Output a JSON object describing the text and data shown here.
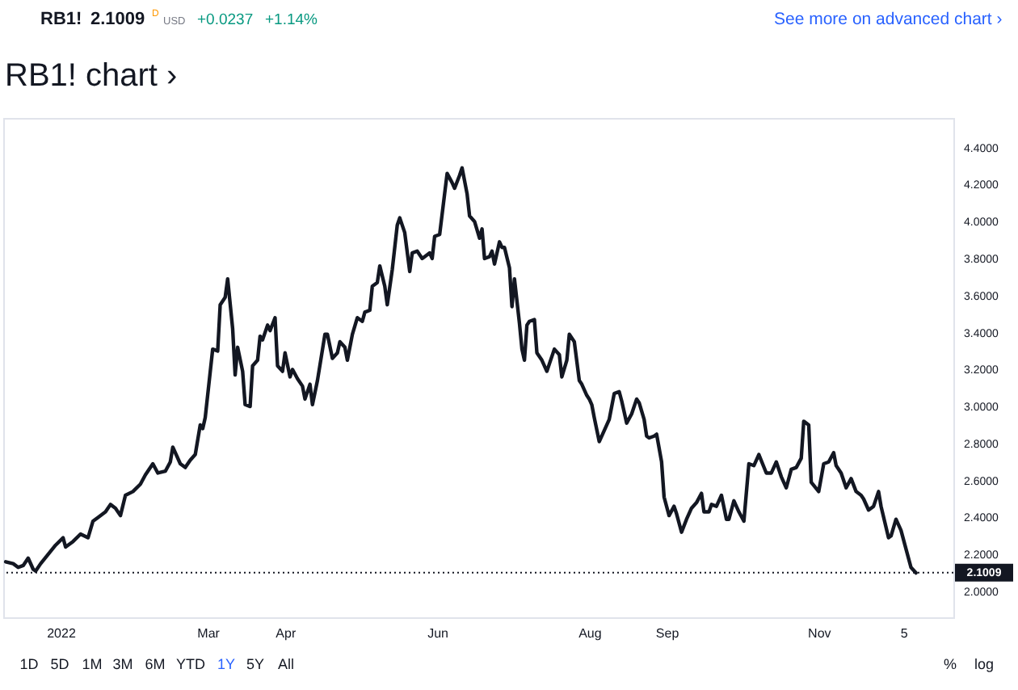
{
  "chart_data": {
    "type": "line",
    "title": "RB1! chart ›",
    "x": [
      "2021-12-10",
      "2021-12-13",
      "2021-12-15",
      "2021-12-17",
      "2021-12-19",
      "2021-12-21",
      "2021-12-22",
      "2021-12-24",
      "2021-12-27",
      "2021-12-30",
      "2022-01-02",
      "2022-01-03",
      "2022-01-06",
      "2022-01-09",
      "2022-01-12",
      "2022-01-14",
      "2022-01-16",
      "2022-01-19",
      "2022-01-21",
      "2022-01-23",
      "2022-01-25",
      "2022-01-27",
      "2022-01-30",
      "2022-02-02",
      "2022-02-04",
      "2022-02-07",
      "2022-02-09",
      "2022-02-12",
      "2022-02-14",
      "2022-02-15",
      "2022-02-18",
      "2022-02-20",
      "2022-02-22",
      "2022-02-24",
      "2022-02-26",
      "2022-02-27",
      "2022-02-28",
      "2022-03-03",
      "2022-03-05",
      "2022-03-06",
      "2022-03-08",
      "2022-03-09",
      "2022-03-11",
      "2022-03-12",
      "2022-03-13",
      "2022-03-15",
      "2022-03-16",
      "2022-03-18",
      "2022-03-19",
      "2022-03-21",
      "2022-03-22",
      "2022-03-23",
      "2022-03-25",
      "2022-03-26",
      "2022-03-28",
      "2022-03-29",
      "2022-03-31",
      "2022-04-01",
      "2022-04-03",
      "2022-04-04",
      "2022-04-06",
      "2022-04-08",
      "2022-04-09",
      "2022-04-11",
      "2022-04-12",
      "2022-04-14",
      "2022-04-17",
      "2022-04-18",
      "2022-04-20",
      "2022-04-22",
      "2022-04-23",
      "2022-04-25",
      "2022-04-26",
      "2022-04-28",
      "2022-04-30",
      "2022-05-02",
      "2022-05-03",
      "2022-05-05",
      "2022-05-06",
      "2022-05-08",
      "2022-05-09",
      "2022-05-11",
      "2022-05-12",
      "2022-05-14",
      "2022-05-16",
      "2022-05-17",
      "2022-05-19",
      "2022-05-21",
      "2022-05-22",
      "2022-05-24",
      "2022-05-26",
      "2022-05-27",
      "2022-05-29",
      "2022-05-30",
      "2022-05-31",
      "2022-06-02",
      "2022-06-04",
      "2022-06-05",
      "2022-06-07",
      "2022-06-08",
      "2022-06-10",
      "2022-06-11",
      "2022-06-13",
      "2022-06-14",
      "2022-06-16",
      "2022-06-18",
      "2022-06-19",
      "2022-06-20",
      "2022-06-22",
      "2022-06-23",
      "2022-06-24",
      "2022-06-26",
      "2022-06-27",
      "2022-06-28",
      "2022-06-30",
      "2022-07-01",
      "2022-07-02",
      "2022-07-04",
      "2022-07-05",
      "2022-07-06",
      "2022-07-07",
      "2022-07-08",
      "2022-07-10",
      "2022-07-11",
      "2022-07-13",
      "2022-07-15",
      "2022-07-16",
      "2022-07-18",
      "2022-07-20",
      "2022-07-21",
      "2022-07-23",
      "2022-07-24",
      "2022-07-26",
      "2022-07-28",
      "2022-07-29",
      "2022-07-31",
      "2022-08-01",
      "2022-08-02",
      "2022-08-03",
      "2022-08-05",
      "2022-08-07",
      "2022-08-09",
      "2022-08-11",
      "2022-08-13",
      "2022-08-14",
      "2022-08-16",
      "2022-08-18",
      "2022-08-20",
      "2022-08-21",
      "2022-08-23",
      "2022-08-24",
      "2022-08-25",
      "2022-08-27",
      "2022-08-28",
      "2022-08-30",
      "2022-08-31",
      "2022-09-02",
      "2022-09-04",
      "2022-09-05",
      "2022-09-07",
      "2022-09-09",
      "2022-09-11",
      "2022-09-13",
      "2022-09-15",
      "2022-09-16",
      "2022-09-18",
      "2022-09-19",
      "2022-09-21",
      "2022-09-23",
      "2022-09-25",
      "2022-09-26",
      "2022-09-28",
      "2022-09-30",
      "2022-10-02",
      "2022-10-04",
      "2022-10-06",
      "2022-10-08",
      "2022-10-11",
      "2022-10-13",
      "2022-10-15",
      "2022-10-17",
      "2022-10-19",
      "2022-10-21",
      "2022-10-23",
      "2022-10-25",
      "2022-10-26",
      "2022-10-28",
      "2022-10-29",
      "2022-11-01",
      "2022-11-03",
      "2022-11-05",
      "2022-11-07",
      "2022-11-08",
      "2022-11-10",
      "2022-11-12",
      "2022-11-14",
      "2022-11-16",
      "2022-11-18",
      "2022-11-19",
      "2022-11-21",
      "2022-11-23",
      "2022-11-25",
      "2022-11-26",
      "2022-11-29",
      "2022-11-30",
      "2022-12-02",
      "2022-12-04",
      "2022-12-06",
      "2022-12-08",
      "2022-12-10"
    ],
    "series": [
      {
        "color": "#131722",
        "values": [
          2.16,
          2.15,
          2.13,
          2.14,
          2.18,
          2.12,
          2.11,
          2.15,
          2.2,
          2.25,
          2.29,
          2.24,
          2.27,
          2.31,
          2.29,
          2.38,
          2.4,
          2.43,
          2.47,
          2.45,
          2.41,
          2.52,
          2.54,
          2.58,
          2.63,
          2.69,
          2.64,
          2.65,
          2.7,
          2.78,
          2.69,
          2.67,
          2.71,
          2.74,
          2.9,
          2.88,
          2.94,
          3.31,
          3.3,
          3.55,
          3.59,
          3.69,
          3.42,
          3.17,
          3.32,
          3.19,
          3.01,
          3.0,
          3.22,
          3.25,
          3.38,
          3.36,
          3.44,
          3.41,
          3.48,
          3.22,
          3.19,
          3.29,
          3.16,
          3.2,
          3.15,
          3.11,
          3.04,
          3.12,
          3.01,
          3.14,
          3.39,
          3.39,
          3.26,
          3.29,
          3.35,
          3.32,
          3.25,
          3.39,
          3.48,
          3.46,
          3.51,
          3.52,
          3.65,
          3.67,
          3.76,
          3.65,
          3.55,
          3.74,
          3.98,
          4.02,
          3.94,
          3.73,
          3.83,
          3.84,
          3.8,
          3.81,
          3.83,
          3.8,
          3.92,
          3.93,
          4.15,
          4.26,
          4.21,
          4.18,
          4.25,
          4.29,
          4.15,
          4.03,
          4.0,
          3.91,
          3.96,
          3.8,
          3.81,
          3.84,
          3.77,
          3.89,
          3.86,
          3.86,
          3.75,
          3.54,
          3.69,
          3.45,
          3.31,
          3.25,
          3.44,
          3.46,
          3.47,
          3.29,
          3.25,
          3.19,
          3.23,
          3.31,
          3.28,
          3.16,
          3.25,
          3.39,
          3.35,
          3.14,
          3.12,
          3.06,
          3.04,
          3.01,
          2.94,
          2.81,
          2.87,
          2.93,
          3.07,
          3.08,
          3.03,
          2.91,
          2.96,
          3.04,
          3.02,
          2.93,
          2.84,
          2.83,
          2.84,
          2.85,
          2.7,
          2.51,
          2.41,
          2.46,
          2.42,
          2.32,
          2.39,
          2.45,
          2.48,
          2.53,
          2.43,
          2.43,
          2.47,
          2.46,
          2.52,
          2.39,
          2.39,
          2.49,
          2.43,
          2.38,
          2.69,
          2.68,
          2.74,
          2.64,
          2.64,
          2.7,
          2.62,
          2.56,
          2.66,
          2.67,
          2.72,
          2.92,
          2.9,
          2.59,
          2.54,
          2.69,
          2.7,
          2.75,
          2.68,
          2.64,
          2.56,
          2.61,
          2.54,
          2.52,
          2.5,
          2.44,
          2.46,
          2.54,
          2.46,
          2.29,
          2.3,
          2.39,
          2.33,
          2.23,
          2.13,
          2.1
        ]
      }
    ],
    "xlim": [
      "2021-12-09",
      "2022-12-25"
    ],
    "xticks": [
      {
        "value": "2022-01-01",
        "label": "2022"
      },
      {
        "value": "2022-03-01",
        "label": "Mar"
      },
      {
        "value": "2022-04-01",
        "label": "Apr"
      },
      {
        "value": "2022-06-01",
        "label": "Jun"
      },
      {
        "value": "2022-08-01",
        "label": "Aug"
      },
      {
        "value": "2022-09-01",
        "label": "Sep"
      },
      {
        "value": "2022-11-01",
        "label": "Nov"
      },
      {
        "value": "2022-12-05",
        "label": "5"
      }
    ],
    "ylim": [
      1.86,
      4.56
    ],
    "yticks": [
      {
        "value": 2.0,
        "label": "2.0000"
      },
      {
        "value": 2.2,
        "label": "2.2000"
      },
      {
        "value": 2.4,
        "label": "2.4000"
      },
      {
        "value": 2.6,
        "label": "2.6000"
      },
      {
        "value": 2.8,
        "label": "2.8000"
      },
      {
        "value": 3.0,
        "label": "3.0000"
      },
      {
        "value": 3.2,
        "label": "3.2000"
      },
      {
        "value": 3.4,
        "label": "3.4000"
      },
      {
        "value": 3.6,
        "label": "3.6000"
      },
      {
        "value": 3.8,
        "label": "3.8000"
      },
      {
        "value": 4.0,
        "label": "4.0000"
      },
      {
        "value": 4.2,
        "label": "4.2000"
      },
      {
        "value": 4.4,
        "label": "4.4000"
      }
    ],
    "ref_lines": [
      {
        "axis": "y",
        "value": 2.1009,
        "label": "2.1009",
        "color": "#131722",
        "line_style": "dotted"
      }
    ],
    "annotations": [
      "RB1!",
      "2.1009",
      "D",
      "USD",
      "+0.0237",
      "+1.14%",
      "See more on advanced chart ›",
      "1D",
      "5D",
      "1M",
      "3M",
      "6M",
      "YTD",
      "1Y",
      "5Y",
      "All",
      "%",
      "log"
    ]
  }
}
